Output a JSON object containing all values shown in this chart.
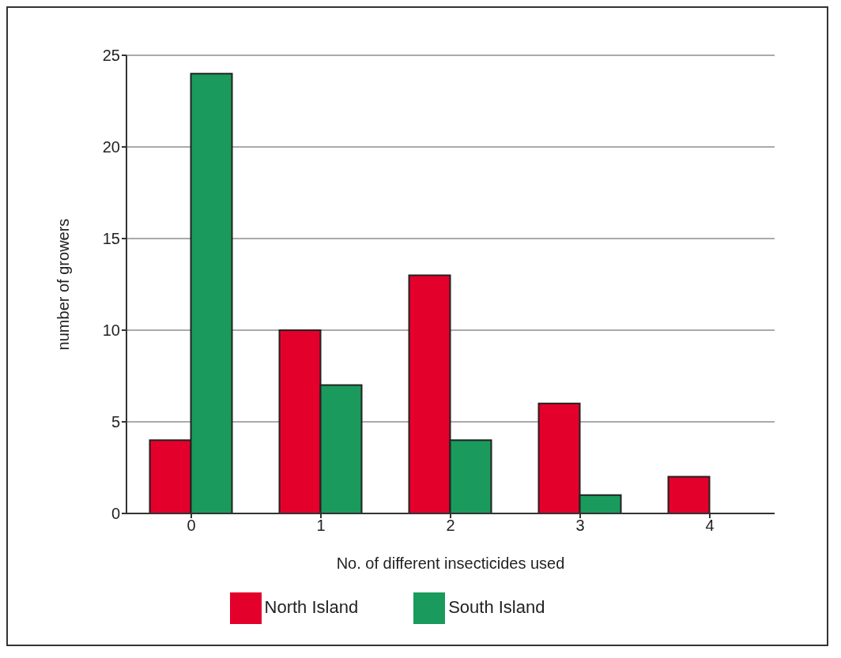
{
  "chart_data": {
    "type": "bar",
    "xlabel": "No. of different insecticides used",
    "ylabel": "number of growers",
    "categories": [
      "0",
      "1",
      "2",
      "3",
      "4"
    ],
    "series": [
      {
        "name": "North Island",
        "color": "#e3002b",
        "values": [
          4,
          10,
          13,
          6,
          2
        ]
      },
      {
        "name": "South Island",
        "color": "#1a9a5c",
        "values": [
          24,
          7,
          4,
          1,
          0
        ]
      }
    ],
    "ylim": [
      0,
      25
    ],
    "yticks": [
      0,
      5,
      10,
      15,
      20,
      25
    ],
    "grid": "y",
    "legend": "bottom"
  }
}
